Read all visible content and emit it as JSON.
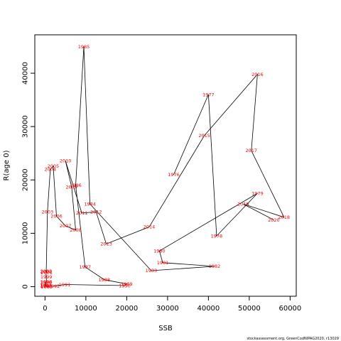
{
  "chart_data": {
    "type": "line",
    "title": "",
    "xlabel": "SSB",
    "ylabel": "R(age 0)",
    "xlim": [
      -2500,
      61500
    ],
    "ylim": [
      -1800,
      47200
    ],
    "xticks": [
      0,
      10000,
      20000,
      30000,
      40000,
      50000,
      60000
    ],
    "yticks": [
      0,
      10000,
      20000,
      30000,
      40000
    ],
    "grid": false,
    "label_color": "#ff0000",
    "line_color": "#000000",
    "credit": "stockassessment.org, GreenCodNIPAG2020, r13029",
    "points": [
      {
        "year": "1976",
        "x": 31500,
        "y": 21000
      },
      {
        "year": "1977",
        "x": 40000,
        "y": 36000
      },
      {
        "year": "1978",
        "x": 42000,
        "y": 9500
      },
      {
        "year": "1979",
        "x": 52000,
        "y": 17500
      },
      {
        "year": "1980",
        "x": 28000,
        "y": 6700
      },
      {
        "year": "1981",
        "x": 28800,
        "y": 4500
      },
      {
        "year": "1982",
        "x": 41500,
        "y": 3800
      },
      {
        "year": "1983",
        "x": 26000,
        "y": 3000
      },
      {
        "year": "1984",
        "x": 11000,
        "y": 15500
      },
      {
        "year": "1985",
        "x": 9500,
        "y": 45000
      },
      {
        "year": "1986",
        "x": 7500,
        "y": 19000
      },
      {
        "year": "1987",
        "x": 9800,
        "y": 3700
      },
      {
        "year": "1988",
        "x": 14500,
        "y": 1300
      },
      {
        "year": "1989",
        "x": 20000,
        "y": 500
      },
      {
        "year": "1990",
        "x": 19500,
        "y": 200
      },
      {
        "year": "1991",
        "x": 4800,
        "y": 400
      },
      {
        "year": "1992",
        "x": 2200,
        "y": 100
      },
      {
        "year": "1993",
        "x": 400,
        "y": 0
      },
      {
        "year": "1994",
        "x": 300,
        "y": 150
      },
      {
        "year": "1995",
        "x": 250,
        "y": 100
      },
      {
        "year": "1996",
        "x": 200,
        "y": 800
      },
      {
        "year": "1997",
        "x": 150,
        "y": 300
      },
      {
        "year": "1998",
        "x": 350,
        "y": 900
      },
      {
        "year": "1999",
        "x": 300,
        "y": 1800
      },
      {
        "year": "2000",
        "x": 250,
        "y": 2800
      },
      {
        "year": "2001",
        "x": 400,
        "y": 2600
      },
      {
        "year": "2002",
        "x": 300,
        "y": 2900
      },
      {
        "year": "2003",
        "x": 600,
        "y": 14000
      },
      {
        "year": "2004",
        "x": 1300,
        "y": 22000
      },
      {
        "year": "2005",
        "x": 2000,
        "y": 22600
      },
      {
        "year": "2006",
        "x": 2800,
        "y": 13200
      },
      {
        "year": "2007",
        "x": 5000,
        "y": 11400
      },
      {
        "year": "2008",
        "x": 7500,
        "y": 10600
      },
      {
        "year": "2009",
        "x": 6500,
        "y": 18700
      },
      {
        "year": "2010",
        "x": 5000,
        "y": 23600
      },
      {
        "year": "2011",
        "x": 9000,
        "y": 13800
      },
      {
        "year": "2012",
        "x": 12500,
        "y": 14000
      },
      {
        "year": "2013",
        "x": 15000,
        "y": 8000
      },
      {
        "year": "2014",
        "x": 25500,
        "y": 11200
      },
      {
        "year": "2015",
        "x": 39000,
        "y": 28300
      },
      {
        "year": "2016",
        "x": 52000,
        "y": 39800
      },
      {
        "year": "2017",
        "x": 50500,
        "y": 25500
      },
      {
        "year": "2018",
        "x": 58500,
        "y": 13000
      },
      {
        "year": "2019",
        "x": 48500,
        "y": 15500
      },
      {
        "year": "2020",
        "x": 56000,
        "y": 12500
      }
    ]
  }
}
